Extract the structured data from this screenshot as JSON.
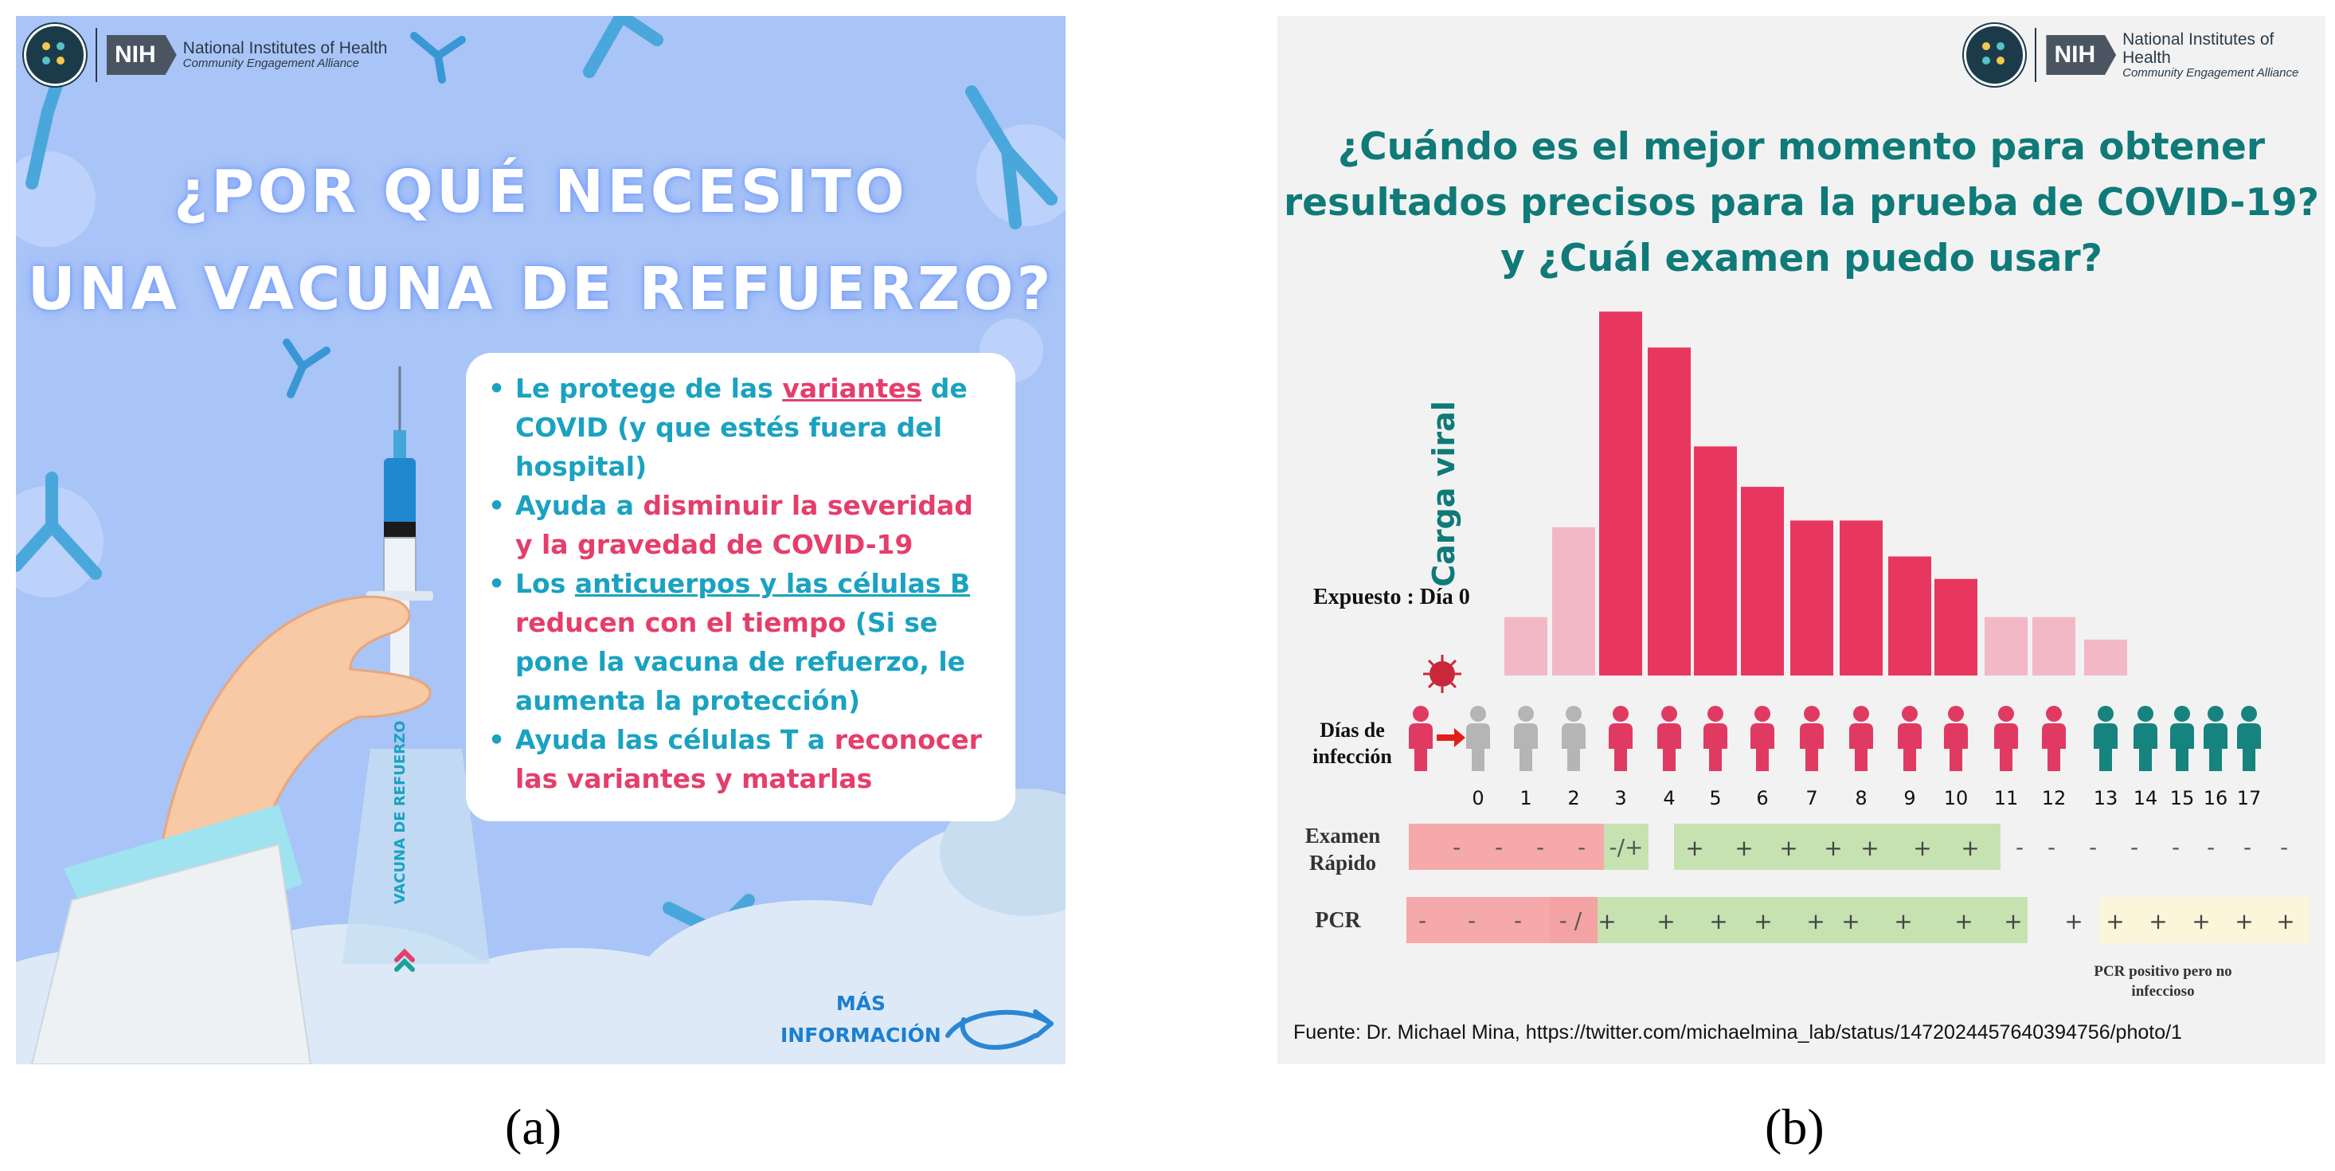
{
  "captions": {
    "a": "(a)",
    "b": "(b)"
  },
  "colors": {
    "panel_a_bg": "#a9c4f6",
    "teal_text": "#1aa2c1",
    "pink_text": "#e53e6b",
    "title_green": "#0f7a78",
    "bar_dark": "#e8375f",
    "bar_light": "#f2b8c5",
    "person_grey": "#b5b5b5",
    "person_pink": "#e03a62",
    "person_teal": "#17837e",
    "neg_box": "#f6a9aa",
    "pos_box": "#c6e2b1",
    "cream_box": "#fbf5d9"
  },
  "logo": {
    "nih": "NIH",
    "line1": "National Institutes of Health",
    "line2": "Community Engagement Alliance"
  },
  "panel_a": {
    "title_line1": "¿POR QUÉ NECESITO",
    "title_line2": "UNA VACUNA DE REFUERZO?",
    "syringe_label": "VACUNA DE REFUERZO",
    "bullets": {
      "b1_p1": "Le protege de las ",
      "b1_link": "variantes",
      "b1_p2": " de COVID (y que estés fuera del hospital)",
      "b2_p1": "Ayuda a ",
      "b2_p2": "disminuir la severidad y la gravedad de COVID-19",
      "b3_p1": "Los ",
      "b3_link": "anticuerpos y las células  B",
      "b3_p2": " reducen con el tiempo",
      "b3_p3": " (Si se pone la vacuna de refuerzo, le aumenta la protección)",
      "b4_p1": "Ayuda las células T a ",
      "b4_p2": "reconocer las variantes y matarlas"
    },
    "more_info_1": "MÁS",
    "more_info_2": "INFORMACIÓN"
  },
  "panel_b": {
    "title_line1": "¿Cuándo es el mejor momento para obtener",
    "title_line2": "resultados precisos para la prueba de COVID-19?",
    "title_line3": "y ¿Cuál examen puedo usar?",
    "source": "Fuente: Dr. Michael Mina, https://twitter.com/michaelmina_lab/status/1472024457640394756/photo/1"
  },
  "chart_data": {
    "type": "bar",
    "title": "",
    "ylabel": "Carga viral",
    "exposed_label": "Expuesto : Día 0",
    "days_label_1": "Días de",
    "days_label_2": "infección",
    "categories": [
      "0",
      "1",
      "2",
      "3",
      "4",
      "5",
      "6",
      "7",
      "8",
      "9",
      "10",
      "11",
      "12",
      "13"
    ],
    "values": [
      0,
      2.6,
      6.6,
      16.2,
      14.6,
      10.2,
      8.4,
      6.9,
      6.9,
      5.3,
      4.3,
      2.6,
      2.6,
      1.6
    ],
    "bar_tone": [
      "none",
      "light",
      "light",
      "dark",
      "dark",
      "dark",
      "dark",
      "dark",
      "dark",
      "dark",
      "dark",
      "light",
      "light",
      "light"
    ],
    "ylim": [
      0,
      17
    ],
    "day_labels": [
      "0",
      "1",
      "2",
      "3",
      "4",
      "5",
      "6",
      "7",
      "8",
      "9",
      "10",
      "11",
      "12",
      "13",
      "14",
      "15",
      "16",
      "17"
    ],
    "person_status": [
      "grey",
      "grey",
      "grey",
      "pink",
      "pink",
      "pink",
      "pink",
      "pink",
      "pink",
      "pink",
      "pink",
      "pink",
      "pink",
      "teal",
      "teal",
      "teal",
      "teal",
      "teal"
    ],
    "rapid_test": {
      "label_1": "Examen",
      "label_2": "Rápido",
      "neg_marks": [
        "-",
        "-",
        "-",
        "-"
      ],
      "mixed_mark": "-/+",
      "pos_marks": [
        "+",
        "+",
        "+",
        "+",
        "+",
        "+",
        "+"
      ],
      "after_marks": [
        "-",
        "-",
        "-",
        "-",
        "-",
        "-",
        "-",
        "-"
      ]
    },
    "pcr_test": {
      "label": "PCR",
      "neg_marks": [
        "-",
        "-",
        "-"
      ],
      "mixed_mark": "- /",
      "pos_marks": [
        "+",
        "+",
        "+",
        "+",
        "+",
        "+",
        "+",
        "+",
        "+",
        "+"
      ],
      "cream_marks": [
        "+",
        "+",
        "+",
        "+",
        "+"
      ],
      "note_1": "PCR positivo pero no",
      "note_2": "infeccioso"
    }
  }
}
